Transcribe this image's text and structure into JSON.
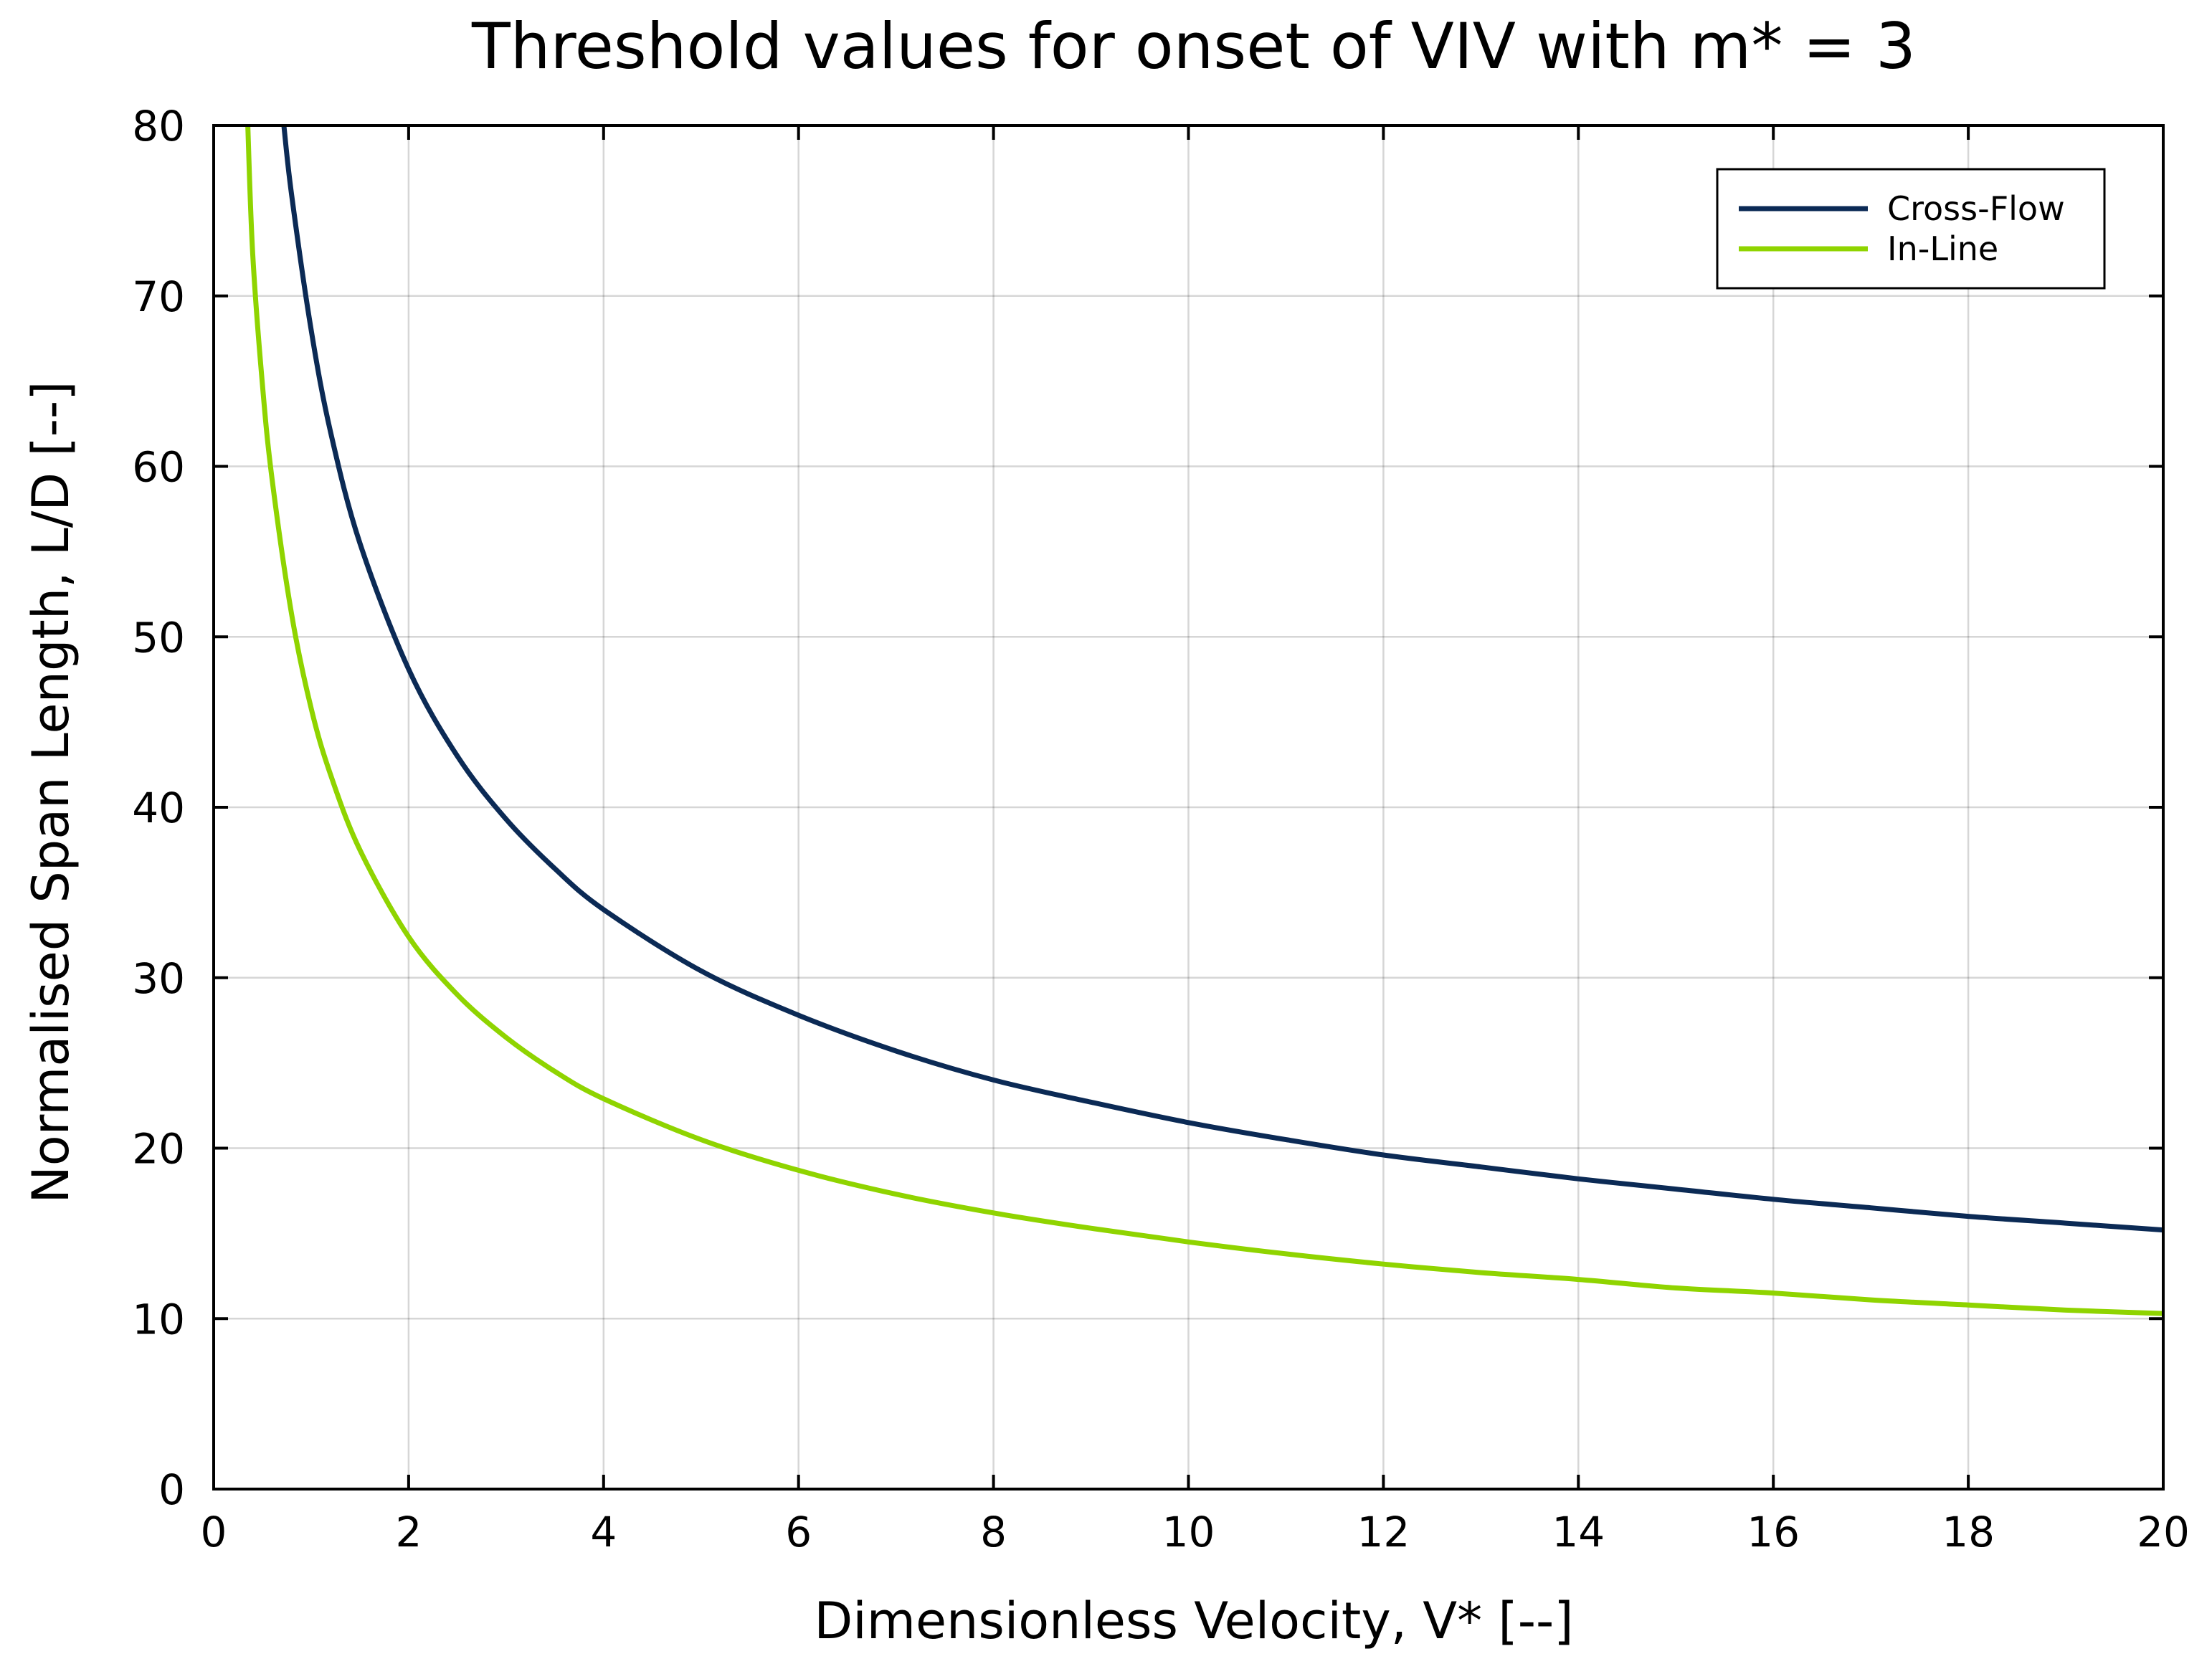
{
  "chart_data": {
    "type": "line",
    "title": "Threshold values for onset of VIV with m* = 3",
    "xlabel": "Dimensionless Velocity, V* [--]",
    "ylabel": "Normalised Span Length, L/D [--]",
    "xlim": [
      0,
      20
    ],
    "ylim": [
      0,
      80
    ],
    "xticks": [
      0,
      2,
      4,
      6,
      8,
      10,
      12,
      14,
      16,
      18,
      20
    ],
    "yticks": [
      0,
      10,
      20,
      30,
      40,
      50,
      60,
      70,
      80
    ],
    "grid": true,
    "legend_position": "top-right",
    "series": [
      {
        "name": "Cross-Flow",
        "color": "#0b2a55",
        "x": [
          0.72,
          0.8,
          1.0,
          1.2,
          1.5,
          2.0,
          2.5,
          3.0,
          3.5,
          4.0,
          5.0,
          6.0,
          7.0,
          8.0,
          9.0,
          10.0,
          11.0,
          12.0,
          13.0,
          14.0,
          15.0,
          16.0,
          17.0,
          18.0,
          19.0,
          20.0
        ],
        "y": [
          80.0,
          75.9,
          68.0,
          62.0,
          55.5,
          48.1,
          43.0,
          39.3,
          36.4,
          34.0,
          30.4,
          27.8,
          25.7,
          24.0,
          22.7,
          21.5,
          20.5,
          19.6,
          18.9,
          18.2,
          17.6,
          17.0,
          16.5,
          16.0,
          15.6,
          15.2
        ]
      },
      {
        "name": "In-Line",
        "color": "#8fd400",
        "x": [
          0.35,
          0.4,
          0.5,
          0.6,
          0.8,
          1.0,
          1.2,
          1.5,
          2.0,
          2.5,
          3.0,
          3.5,
          4.0,
          5.0,
          6.0,
          7.0,
          8.0,
          9.0,
          10.0,
          11.0,
          12.0,
          13.0,
          14.0,
          15.0,
          16.0,
          17.0,
          18.0,
          19.0,
          20.0
        ],
        "y": [
          80.0,
          72.5,
          64.8,
          59.2,
          51.3,
          45.8,
          41.9,
          37.5,
          32.4,
          29.0,
          26.5,
          24.5,
          22.9,
          20.5,
          18.7,
          17.3,
          16.2,
          15.3,
          14.5,
          13.8,
          13.2,
          12.7,
          12.3,
          11.8,
          11.5,
          11.1,
          10.8,
          10.5,
          10.3
        ]
      }
    ]
  }
}
